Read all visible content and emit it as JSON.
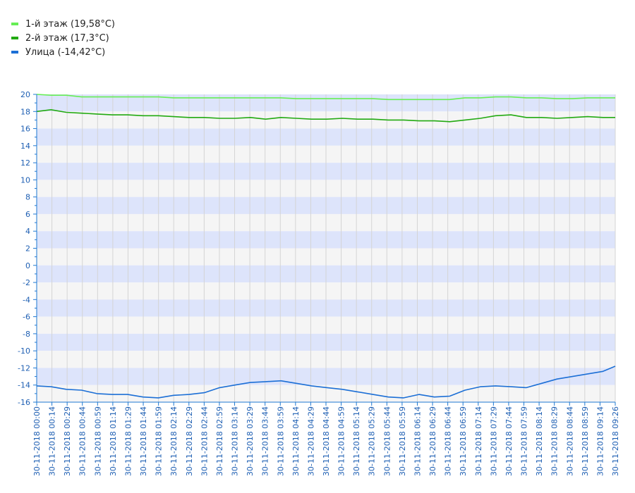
{
  "chart_data": {
    "type": "line",
    "ylim": [
      -16,
      20
    ],
    "y_tick_step": 2,
    "grid": true,
    "legend_position": "top-left",
    "band_colors": [
      "#dde4fb",
      "#f5f5f5"
    ],
    "axis_color": "#1e78d2",
    "x_tick_labels": [
      "30-11-2018 00:00",
      "30-11-2018 00:14",
      "30-11-2018 00:29",
      "30-11-2018 00:44",
      "30-11-2018 00:59",
      "30-11-2018 01:14",
      "30-11-2018 01:29",
      "30-11-2018 01:44",
      "30-11-2018 01:59",
      "30-11-2018 02:14",
      "30-11-2018 02:29",
      "30-11-2018 02:44",
      "30-11-2018 02:59",
      "30-11-2018 03:14",
      "30-11-2018 03:29",
      "30-11-2018 03:44",
      "30-11-2018 03:59",
      "30-11-2018 04:14",
      "30-11-2018 04:29",
      "30-11-2018 04:44",
      "30-11-2018 04:59",
      "30-11-2018 05:14",
      "30-11-2018 05:29",
      "30-11-2018 05:44",
      "30-11-2018 05:59",
      "30-11-2018 06:14",
      "30-11-2018 06:29",
      "30-11-2018 06:44",
      "30-11-2018 06:59",
      "30-11-2018 07:14",
      "30-11-2018 07:29",
      "30-11-2018 07:44",
      "30-11-2018 07:59",
      "30-11-2018 08:14",
      "30-11-2018 08:29",
      "30-11-2018 08:44",
      "30-11-2018 08:59",
      "30-11-2018 09:14",
      "30-11-2018 09:26"
    ],
    "series": [
      {
        "name": "1-й этаж (19,58°C)",
        "color": "#66ee55",
        "x": [
          "00:00",
          "00:14",
          "00:29",
          "00:44",
          "00:59",
          "01:14",
          "01:29",
          "01:44",
          "01:59",
          "02:14",
          "02:29",
          "02:44",
          "02:59",
          "03:14",
          "03:29",
          "03:44",
          "03:59",
          "04:14",
          "04:29",
          "04:44",
          "04:59",
          "05:14",
          "05:29",
          "05:44",
          "05:59",
          "06:14",
          "06:29",
          "06:44",
          "06:59",
          "07:14",
          "07:29",
          "07:44",
          "07:59",
          "08:14",
          "08:29",
          "08:44",
          "08:59",
          "09:14",
          "09:26"
        ],
        "values": [
          20.0,
          19.9,
          19.9,
          19.7,
          19.7,
          19.7,
          19.7,
          19.7,
          19.7,
          19.6,
          19.6,
          19.6,
          19.6,
          19.6,
          19.6,
          19.6,
          19.6,
          19.5,
          19.5,
          19.5,
          19.5,
          19.5,
          19.5,
          19.4,
          19.4,
          19.4,
          19.4,
          19.4,
          19.6,
          19.6,
          19.7,
          19.7,
          19.6,
          19.6,
          19.5,
          19.5,
          19.6,
          19.6,
          19.6
        ]
      },
      {
        "name": "2-й этаж (17,3°C)",
        "color": "#22aa11",
        "x": [
          "00:00",
          "00:14",
          "00:29",
          "00:44",
          "00:59",
          "01:14",
          "01:29",
          "01:44",
          "01:59",
          "02:14",
          "02:29",
          "02:44",
          "02:59",
          "03:14",
          "03:29",
          "03:44",
          "03:59",
          "04:14",
          "04:29",
          "04:44",
          "04:59",
          "05:14",
          "05:29",
          "05:44",
          "05:59",
          "06:14",
          "06:29",
          "06:44",
          "06:59",
          "07:14",
          "07:29",
          "07:44",
          "07:59",
          "08:14",
          "08:29",
          "08:44",
          "08:59",
          "09:14",
          "09:26"
        ],
        "values": [
          18.0,
          18.2,
          17.9,
          17.8,
          17.7,
          17.6,
          17.6,
          17.5,
          17.5,
          17.4,
          17.3,
          17.3,
          17.2,
          17.2,
          17.3,
          17.1,
          17.3,
          17.2,
          17.1,
          17.1,
          17.2,
          17.1,
          17.1,
          17.0,
          17.0,
          16.9,
          16.9,
          16.8,
          17.0,
          17.2,
          17.5,
          17.6,
          17.3,
          17.3,
          17.2,
          17.3,
          17.4,
          17.3,
          17.3
        ]
      },
      {
        "name": "Улица (-14,42°C)",
        "color": "#1c6fd6",
        "x": [
          "00:00",
          "00:14",
          "00:29",
          "00:44",
          "00:59",
          "01:14",
          "01:29",
          "01:44",
          "01:59",
          "02:14",
          "02:29",
          "02:44",
          "02:59",
          "03:14",
          "03:29",
          "03:44",
          "03:59",
          "04:14",
          "04:29",
          "04:44",
          "04:59",
          "05:14",
          "05:29",
          "05:44",
          "05:59",
          "06:14",
          "06:29",
          "06:44",
          "06:59",
          "07:14",
          "07:29",
          "07:44",
          "07:59",
          "08:14",
          "08:29",
          "08:44",
          "08:59",
          "09:14",
          "09:26"
        ],
        "values": [
          -14.1,
          -14.2,
          -14.5,
          -14.6,
          -15.0,
          -15.1,
          -15.1,
          -15.4,
          -15.5,
          -15.2,
          -15.1,
          -14.9,
          -14.3,
          -14.0,
          -13.7,
          -13.6,
          -13.5,
          -13.8,
          -14.1,
          -14.3,
          -14.5,
          -14.8,
          -15.1,
          -15.4,
          -15.5,
          -15.1,
          -15.4,
          -15.3,
          -14.6,
          -14.2,
          -14.1,
          -14.2,
          -14.3,
          -13.8,
          -13.3,
          -13.0,
          -12.7,
          -12.4,
          -11.8
        ]
      }
    ]
  }
}
